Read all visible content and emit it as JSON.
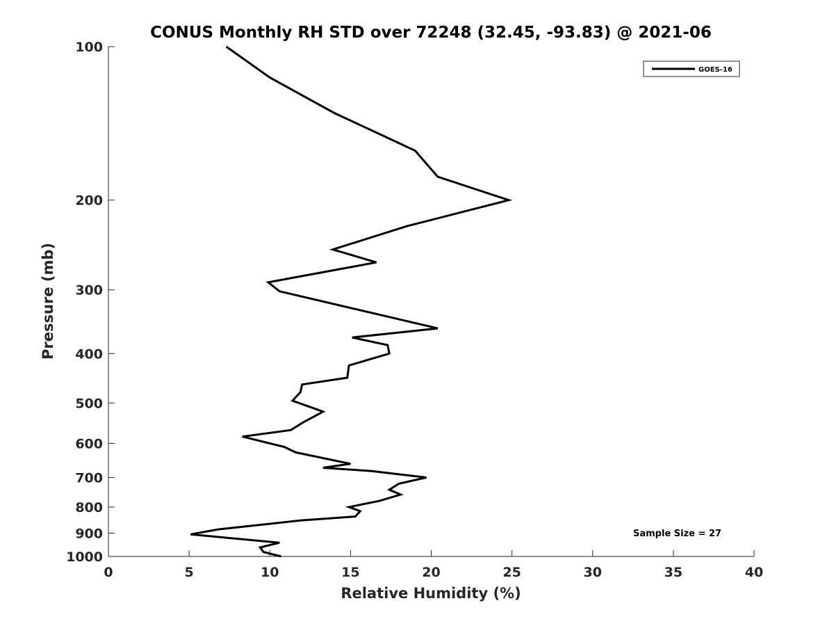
{
  "chart_data": {
    "type": "line",
    "title": "CONUS Monthly RH STD over 72248 (32.45, -93.83) @ 2021-06",
    "xlabel": "Relative Humidity (%)",
    "ylabel": "Pressure (mb)",
    "xlim": [
      0,
      40
    ],
    "ylim": [
      100,
      1000
    ],
    "y_scale": "log",
    "y_reversed": true,
    "x_ticks": [
      0,
      5,
      10,
      15,
      20,
      25,
      30,
      35,
      40
    ],
    "x_tick_labels": [
      "0",
      "5",
      "10",
      "15",
      "20",
      "25",
      "30",
      "35",
      "40"
    ],
    "y_ticks": [
      100,
      200,
      300,
      400,
      500,
      600,
      700,
      800,
      900,
      1000
    ],
    "y_tick_labels": [
      "100",
      "200",
      "300",
      "400",
      "500",
      "600",
      "700",
      "800",
      "900",
      "1000"
    ],
    "grid": false,
    "legend_position": "top-right",
    "annotation": "Sample Size = 27",
    "series": [
      {
        "name": "GOES-16",
        "color": "#000000",
        "x": [
          7.3,
          10.0,
          14.0,
          19.0,
          20.4,
          24.8,
          18.5,
          13.9,
          16.6,
          9.9,
          10.6,
          15.8,
          20.4,
          15.1,
          17.3,
          17.4,
          14.9,
          14.8,
          12.0,
          11.9,
          11.4,
          13.3,
          12.1,
          11.3,
          8.3,
          10.9,
          11.6,
          15.0,
          13.3,
          16.3,
          19.7,
          18.0,
          17.4,
          18.1,
          16.8,
          14.9,
          15.6,
          15.3,
          11.9,
          6.8,
          5.1,
          10.6,
          9.4,
          9.6,
          10.7
        ],
        "y": [
          100,
          115,
          135,
          160,
          180,
          200,
          225,
          250,
          265,
          290,
          302,
          330,
          357,
          372,
          385,
          400,
          422,
          446,
          460,
          476,
          495,
          520,
          545,
          565,
          582,
          610,
          625,
          658,
          670,
          680,
          700,
          720,
          740,
          756,
          778,
          800,
          815,
          835,
          850,
          885,
          905,
          940,
          960,
          980,
          1000
        ]
      }
    ]
  }
}
